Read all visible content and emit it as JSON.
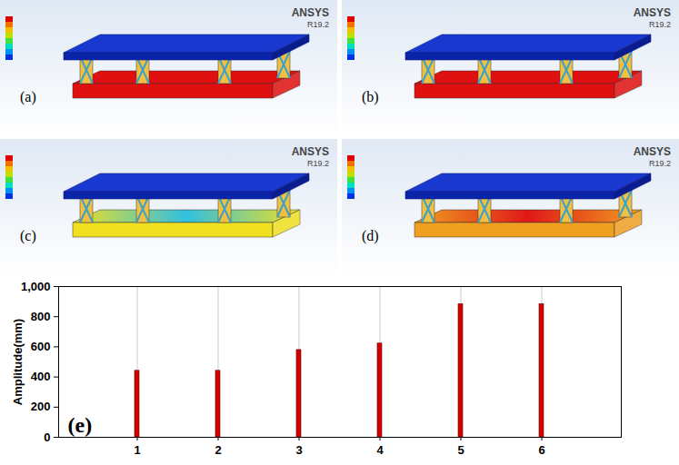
{
  "panels": [
    {
      "label": "(a)",
      "header": "ANSYS",
      "version": "R19.2"
    },
    {
      "label": "(b)",
      "header": "ANSYS",
      "version": "R19.2"
    },
    {
      "label": "(c)",
      "header": "ANSYS",
      "version": "R19.2"
    },
    {
      "label": "(d)",
      "header": "ANSYS",
      "version": "R19.2"
    }
  ],
  "chart_data": {
    "type": "bar",
    "title": "(e)",
    "y_label": "Amplitude(mm)",
    "categories": [
      1,
      2,
      3,
      4,
      5,
      6
    ],
    "values": [
      441,
      441,
      579,
      622,
      883,
      883
    ],
    "color": "#d40000",
    "ylim": [
      0,
      1000
    ],
    "yticks": [
      0,
      200,
      400,
      600,
      800,
      1000
    ],
    "grid": "x"
  }
}
